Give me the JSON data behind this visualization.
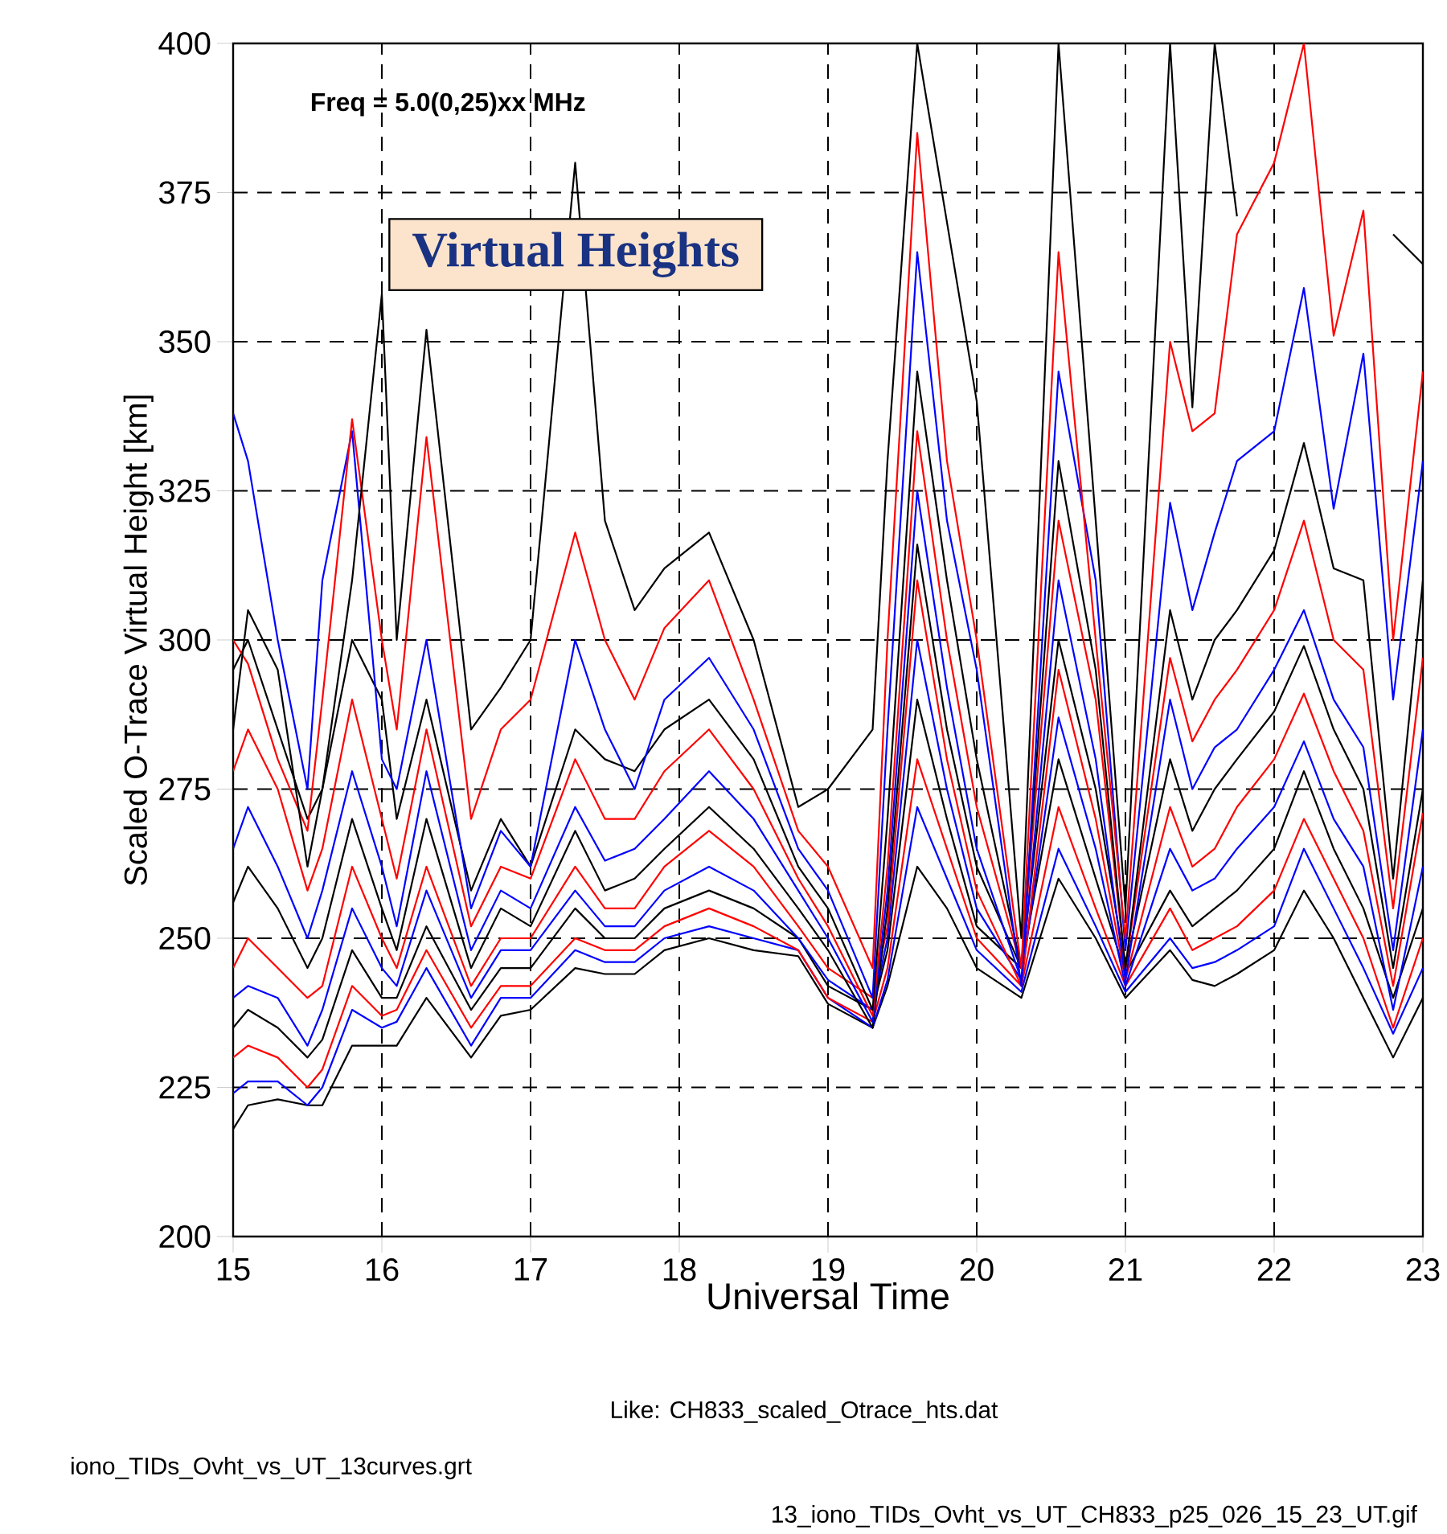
{
  "chart_data": {
    "type": "line",
    "title": "Virtual Heights",
    "xlabel": "Universal Time",
    "ylabel": "Scaled O-Trace Virtual Height [km]",
    "annotations": [
      "Freq = 5.0(0,25)xx MHz",
      "Like: CH833_scaled_Otrace_hts.dat",
      "iono_TIDs_Ovht_vs_UT_13curves.grt",
      "13_iono_TIDs_Ovht_vs_UT_CH833_p25_026_15_23_UT.gif"
    ],
    "xlim": [
      15,
      23
    ],
    "ylim": [
      200,
      400
    ],
    "xticks": [
      15,
      16,
      17,
      18,
      19,
      20,
      21,
      22,
      23
    ],
    "yticks": [
      200,
      225,
      250,
      275,
      300,
      325,
      350,
      375,
      400
    ],
    "grid": true,
    "x": [
      15.0,
      15.1,
      15.3,
      15.5,
      15.6,
      15.8,
      16.0,
      16.1,
      16.3,
      16.6,
      16.8,
      17.0,
      17.3,
      17.5,
      17.7,
      17.9,
      18.2,
      18.5,
      18.8,
      19.0,
      19.3,
      19.4,
      19.6,
      19.8,
      20.0,
      20.3,
      20.55,
      20.8,
      21.0,
      21.3,
      21.45,
      21.6,
      21.75,
      22.0,
      22.2,
      22.4,
      22.6,
      22.8,
      23.0
    ],
    "series": [
      {
        "color": "#000000",
        "values": [
          218,
          222,
          223,
          222,
          222,
          232,
          232,
          232,
          240,
          230,
          237,
          238,
          245,
          244,
          244,
          248,
          250,
          248,
          247,
          239,
          235,
          242,
          262,
          255,
          245,
          240,
          260,
          250,
          240,
          248,
          243,
          242,
          244,
          248,
          258,
          250,
          240,
          230,
          240
        ]
      },
      {
        "color": "#0000ff",
        "values": [
          224,
          226,
          226,
          222,
          225,
          238,
          235,
          236,
          245,
          232,
          240,
          240,
          248,
          246,
          246,
          250,
          252,
          250,
          248,
          240,
          235,
          243,
          272,
          260,
          248,
          241,
          265,
          252,
          241,
          250,
          245,
          246,
          248,
          252,
          265,
          255,
          245,
          234,
          245
        ]
      },
      {
        "color": "#ff0000",
        "values": [
          230,
          232,
          230,
          225,
          228,
          242,
          237,
          238,
          248,
          235,
          242,
          242,
          250,
          248,
          248,
          252,
          255,
          252,
          248,
          240,
          236,
          245,
          280,
          265,
          250,
          242,
          272,
          255,
          242,
          255,
          248,
          250,
          252,
          258,
          270,
          260,
          250,
          235,
          250
        ]
      },
      {
        "color": "#000000",
        "values": [
          235,
          238,
          235,
          230,
          233,
          248,
          240,
          240,
          252,
          238,
          245,
          245,
          255,
          250,
          250,
          255,
          258,
          255,
          250,
          242,
          238,
          248,
          290,
          270,
          252,
          245,
          280,
          260,
          244,
          258,
          252,
          255,
          258,
          265,
          278,
          265,
          255,
          240,
          255
        ]
      },
      {
        "color": "#0000ff",
        "values": [
          240,
          242,
          240,
          232,
          238,
          255,
          245,
          242,
          258,
          240,
          248,
          248,
          258,
          252,
          252,
          258,
          262,
          258,
          250,
          243,
          238,
          250,
          300,
          275,
          255,
          243,
          287,
          265,
          242,
          265,
          258,
          260,
          265,
          272,
          283,
          270,
          262,
          238,
          262
        ]
      },
      {
        "color": "#ff0000",
        "values": [
          245,
          250,
          245,
          240,
          242,
          262,
          250,
          245,
          262,
          242,
          250,
          250,
          262,
          255,
          255,
          262,
          268,
          262,
          252,
          245,
          240,
          252,
          310,
          280,
          258,
          242,
          295,
          270,
          243,
          272,
          262,
          265,
          272,
          280,
          291,
          278,
          268,
          242,
          271
        ]
      },
      {
        "color": "#000000",
        "values": [
          256,
          262,
          255,
          245,
          250,
          270,
          255,
          248,
          270,
          245,
          255,
          252,
          268,
          258,
          260,
          265,
          272,
          265,
          255,
          248,
          235,
          255,
          316,
          285,
          262,
          245,
          300,
          275,
          245,
          280,
          268,
          275,
          280,
          288,
          299,
          285,
          275,
          245,
          275
        ]
      },
      {
        "color": "#0000ff",
        "values": [
          265,
          272,
          262,
          250,
          258,
          278,
          262,
          252,
          278,
          248,
          258,
          255,
          272,
          263,
          265,
          270,
          278,
          270,
          258,
          250,
          236,
          258,
          325,
          292,
          265,
          243,
          310,
          280,
          243,
          290,
          275,
          282,
          285,
          295,
          305,
          290,
          282,
          248,
          285
        ]
      },
      {
        "color": "#ff0000",
        "values": [
          278,
          285,
          275,
          258,
          265,
          290,
          270,
          260,
          285,
          252,
          262,
          260,
          280,
          270,
          270,
          278,
          285,
          275,
          260,
          252,
          237,
          262,
          335,
          300,
          272,
          245,
          320,
          290,
          245,
          297,
          283,
          290,
          295,
          305,
          320,
          300,
          295,
          255,
          297
        ]
      },
      {
        "color": "#000000",
        "values": [
          295,
          300,
          285,
          270,
          275,
          300,
          290,
          270,
          290,
          258,
          270,
          262,
          285,
          280,
          278,
          285,
          290,
          280,
          262,
          255,
          238,
          270,
          345,
          310,
          280,
          245,
          330,
          295,
          245,
          305,
          290,
          300,
          305,
          315,
          333,
          312,
          310,
          260,
          310
        ]
      },
      {
        "color": "#0000ff",
        "values": [
          338,
          330,
          300,
          275,
          310,
          335,
          280,
          275,
          300,
          255,
          268,
          262,
          300,
          285,
          275,
          290,
          297,
          285,
          265,
          258,
          240,
          285,
          365,
          320,
          295,
          242,
          345,
          310,
          248,
          323,
          305,
          318,
          330,
          335,
          359,
          322,
          348,
          290,
          330
        ]
      },
      {
        "color": "#ff0000",
        "values": [
          300,
          296,
          280,
          268,
          290,
          337,
          300,
          285,
          334,
          270,
          285,
          290,
          318,
          300,
          290,
          302,
          310,
          290,
          268,
          262,
          245,
          300,
          385,
          330,
          300,
          245,
          365,
          300,
          250,
          350,
          335,
          338,
          368,
          380,
          400,
          351,
          372,
          300,
          345
        ]
      },
      {
        "color": "#000000",
        "values": [
          285,
          305,
          295,
          262,
          275,
          310,
          358,
          300,
          352,
          285,
          292,
          300,
          380,
          320,
          305,
          312,
          318,
          300,
          272,
          275,
          285,
          330,
          400,
          370,
          340,
          250,
          400,
          320,
          255,
          400,
          339,
          400,
          371,
          null,
          null,
          null,
          null,
          368,
          363
        ]
      }
    ]
  }
}
